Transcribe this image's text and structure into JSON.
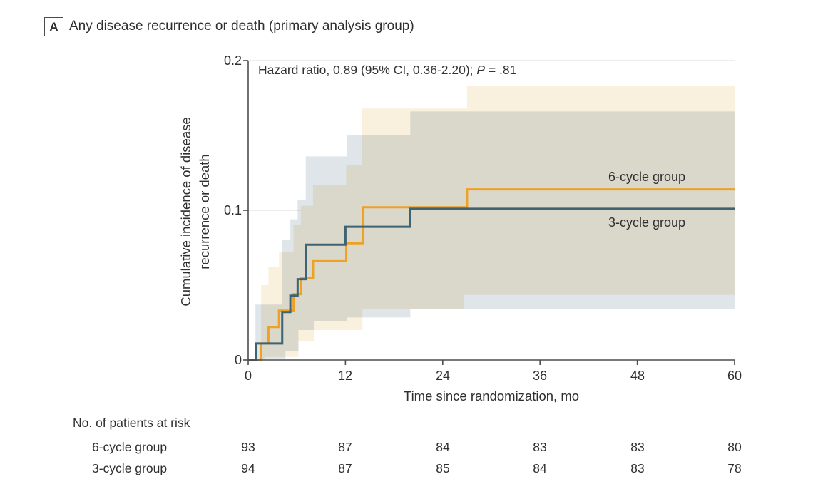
{
  "panel": {
    "letter": "A",
    "title": "Any disease recurrence or death (primary analysis group)"
  },
  "annotation": {
    "full": "Hazard ratio, 0.89 (95% CI, 0.36-2.20); P = .81",
    "prefix": "Hazard ratio, 0.89 (95% CI, 0.36-2.20); ",
    "p_symbol": "P",
    "p_value": " = .81"
  },
  "chart_data": {
    "type": "line",
    "subtype": "step-cumulative-incidence",
    "title": "Any disease recurrence or death (primary analysis group)",
    "xlabel": "Time since randomization, mo",
    "ylabel_line1": "Cumulative incidence of disease",
    "ylabel_line2": "recurrence or death",
    "xlim": [
      0,
      60
    ],
    "ylim": [
      0,
      0.2
    ],
    "xticks": [
      0,
      12,
      24,
      36,
      48,
      60
    ],
    "yticks": [
      0,
      0.1,
      0.2
    ],
    "xtick_labels": [
      "0",
      "12",
      "24",
      "36",
      "48",
      "60"
    ],
    "ytick_labels": [
      "0",
      "0.1",
      "0.2"
    ],
    "grid": {
      "y_values": [
        0.1,
        0.2
      ],
      "color": "#e7e7e4",
      "legend_position": "inline-right"
    },
    "axis_color": "#4d4d4d",
    "series": [
      {
        "name": "6-cycle group",
        "color": "#efa124",
        "band_color": "#faf0de",
        "steps": [
          [
            1.6,
            0.011
          ],
          [
            2.5,
            0.022
          ],
          [
            3.8,
            0.033
          ],
          [
            5.6,
            0.044
          ],
          [
            6.5,
            0.055
          ],
          [
            8.0,
            0.066
          ],
          [
            12.1,
            0.078
          ],
          [
            14.2,
            0.102
          ],
          [
            27.0,
            0.114
          ]
        ],
        "final_value": 0.114,
        "ci_upper": [
          [
            1.6,
            0.05
          ],
          [
            2.5,
            0.062
          ],
          [
            3.8,
            0.072
          ],
          [
            5.6,
            0.09
          ],
          [
            6.5,
            0.103
          ],
          [
            8.0,
            0.117
          ],
          [
            12.1,
            0.13
          ],
          [
            14.0,
            0.168
          ],
          [
            27.0,
            0.183
          ]
        ],
        "ci_lower": [
          [
            2.0,
            0.002
          ],
          [
            6.2,
            0.0128
          ],
          [
            8.1,
            0.02
          ],
          [
            14.1,
            0.034
          ],
          [
            26.6,
            0.0435
          ]
        ]
      },
      {
        "name": "3-cycle group",
        "color": "#3e6372",
        "band_color": "#dfe5e9",
        "steps": [
          [
            1.0,
            0.011
          ],
          [
            4.2,
            0.032
          ],
          [
            5.2,
            0.043
          ],
          [
            6.1,
            0.054
          ],
          [
            7.1,
            0.077
          ],
          [
            12.0,
            0.089
          ],
          [
            20.0,
            0.101
          ]
        ],
        "final_value": 0.101,
        "ci_upper": [
          [
            0.9,
            0.037
          ],
          [
            4.2,
            0.08
          ],
          [
            5.2,
            0.094
          ],
          [
            6.1,
            0.107
          ],
          [
            7.1,
            0.136
          ],
          [
            12.2,
            0.15
          ],
          [
            20.0,
            0.166
          ]
        ],
        "ci_lower": [
          [
            1.0,
            0.001
          ],
          [
            4.6,
            0.0062
          ],
          [
            6.2,
            0.02
          ],
          [
            8.1,
            0.026
          ],
          [
            12.2,
            0.0284
          ],
          [
            20.0,
            0.034
          ]
        ]
      }
    ]
  },
  "risk_table": {
    "header": "No. of patients at risk",
    "time_points": [
      0,
      12,
      24,
      36,
      48,
      60
    ],
    "rows": [
      {
        "label": "6-cycle group",
        "values": [
          "93",
          "87",
          "84",
          "83",
          "83",
          "80"
        ]
      },
      {
        "label": "3-cycle group",
        "values": [
          "94",
          "87",
          "85",
          "84",
          "83",
          "78"
        ]
      }
    ]
  }
}
